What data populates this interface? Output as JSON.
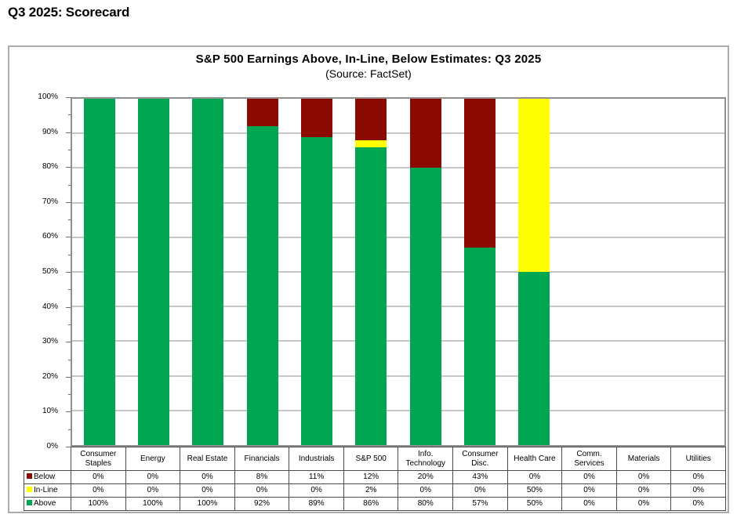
{
  "page": {
    "title": "Q3 2025: Scorecard"
  },
  "chart": {
    "title": "S&P 500 Earnings Above, In-Line, Below Estimates: Q3 2025",
    "subtitle": "(Source: FactSet)"
  },
  "colors": {
    "above": "#00A651",
    "inline": "#FFFF00",
    "below": "#8B0B04",
    "gridline": "#C6C6C6",
    "plot_border": "#8F8F8F",
    "table_border": "#4A4A4A",
    "frame_border": "#ABABAB"
  },
  "chart_data": {
    "type": "bar",
    "stacked": true,
    "title": "S&P 500 Earnings Above, In-Line, Below Estimates: Q3 2025",
    "subtitle": "(Source: FactSet)",
    "categories": [
      "Consumer Staples",
      "Energy",
      "Real Estate",
      "Financials",
      "Industrials",
      "S&P 500",
      "Info. Technology",
      "Consumer Disc.",
      "Health Care",
      "Comm. Services",
      "Materials",
      "Utilities"
    ],
    "series": [
      {
        "name": "Below",
        "color": "#8B0B04",
        "values": [
          0,
          0,
          0,
          8,
          11,
          12,
          20,
          43,
          0,
          0,
          0,
          0
        ]
      },
      {
        "name": "In-Line",
        "color": "#FFFF00",
        "values": [
          0,
          0,
          0,
          0,
          0,
          2,
          0,
          0,
          50,
          0,
          0,
          0
        ]
      },
      {
        "name": "Above",
        "color": "#00A651",
        "values": [
          100,
          100,
          100,
          92,
          89,
          86,
          80,
          57,
          50,
          0,
          0,
          0
        ]
      }
    ],
    "ylabel": "",
    "ylim": [
      0,
      100
    ],
    "yticks": [
      "100%",
      "90%",
      "80%",
      "70%",
      "60%",
      "50%",
      "40%",
      "30%",
      "20%",
      "10%",
      "0%"
    ],
    "grid": true,
    "legend_position": "table-left"
  },
  "table": {
    "rows": [
      {
        "label": "Below",
        "color": "#8B0B04",
        "cells": [
          "0%",
          "0%",
          "0%",
          "8%",
          "11%",
          "12%",
          "20%",
          "43%",
          "0%",
          "0%",
          "0%",
          "0%"
        ]
      },
      {
        "label": "In-Line",
        "color": "#FFFF00",
        "cells": [
          "0%",
          "0%",
          "0%",
          "0%",
          "0%",
          "2%",
          "0%",
          "0%",
          "50%",
          "0%",
          "0%",
          "0%"
        ]
      },
      {
        "label": "Above",
        "color": "#00A651",
        "cells": [
          "100%",
          "100%",
          "100%",
          "92%",
          "89%",
          "86%",
          "80%",
          "57%",
          "50%",
          "0%",
          "0%",
          "0%"
        ]
      }
    ]
  }
}
